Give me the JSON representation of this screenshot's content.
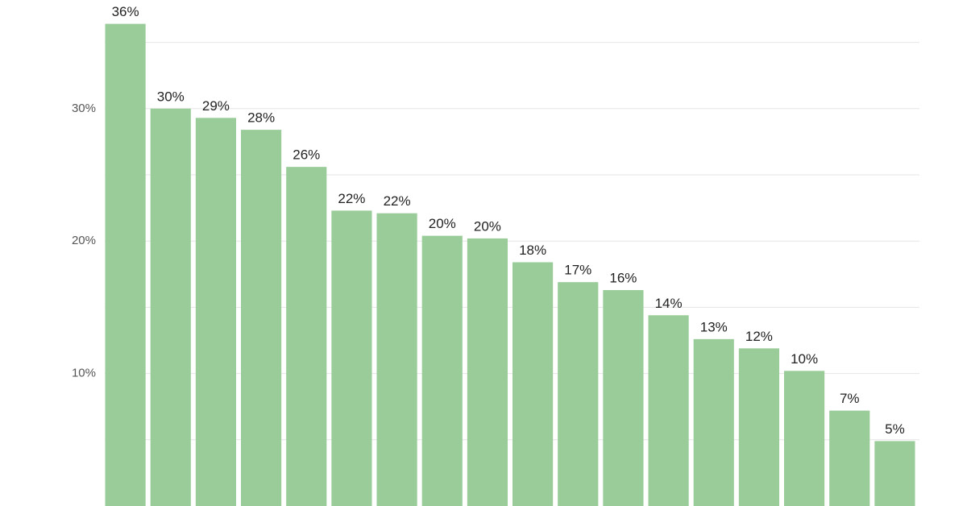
{
  "chart_data": {
    "type": "bar",
    "categories": [
      null,
      null,
      null,
      null,
      null,
      null,
      null,
      null,
      null,
      null,
      null,
      null,
      null,
      null,
      null,
      null,
      null,
      null
    ],
    "values": [
      36.4,
      30.0,
      29.3,
      28.4,
      25.6,
      22.3,
      22.1,
      20.4,
      20.2,
      18.4,
      16.9,
      16.3,
      14.4,
      12.6,
      11.9,
      10.2,
      7.2,
      4.9
    ],
    "value_labels": [
      "36%",
      "30%",
      "29%",
      "28%",
      "26%",
      "22%",
      "22%",
      "20%",
      "20%",
      "18%",
      "17%",
      "16%",
      "14%",
      "13%",
      "12%",
      "10%",
      "7%",
      "5%"
    ],
    "color": "#99cc99",
    "ylim": [
      0,
      38.2
    ],
    "yticks": [
      {
        "value": 10,
        "label": "10%"
      },
      {
        "value": 20,
        "label": "20%"
      },
      {
        "value": 30,
        "label": "30%"
      }
    ],
    "yminorticks": [
      5,
      15,
      25,
      35
    ],
    "grid": true
  }
}
